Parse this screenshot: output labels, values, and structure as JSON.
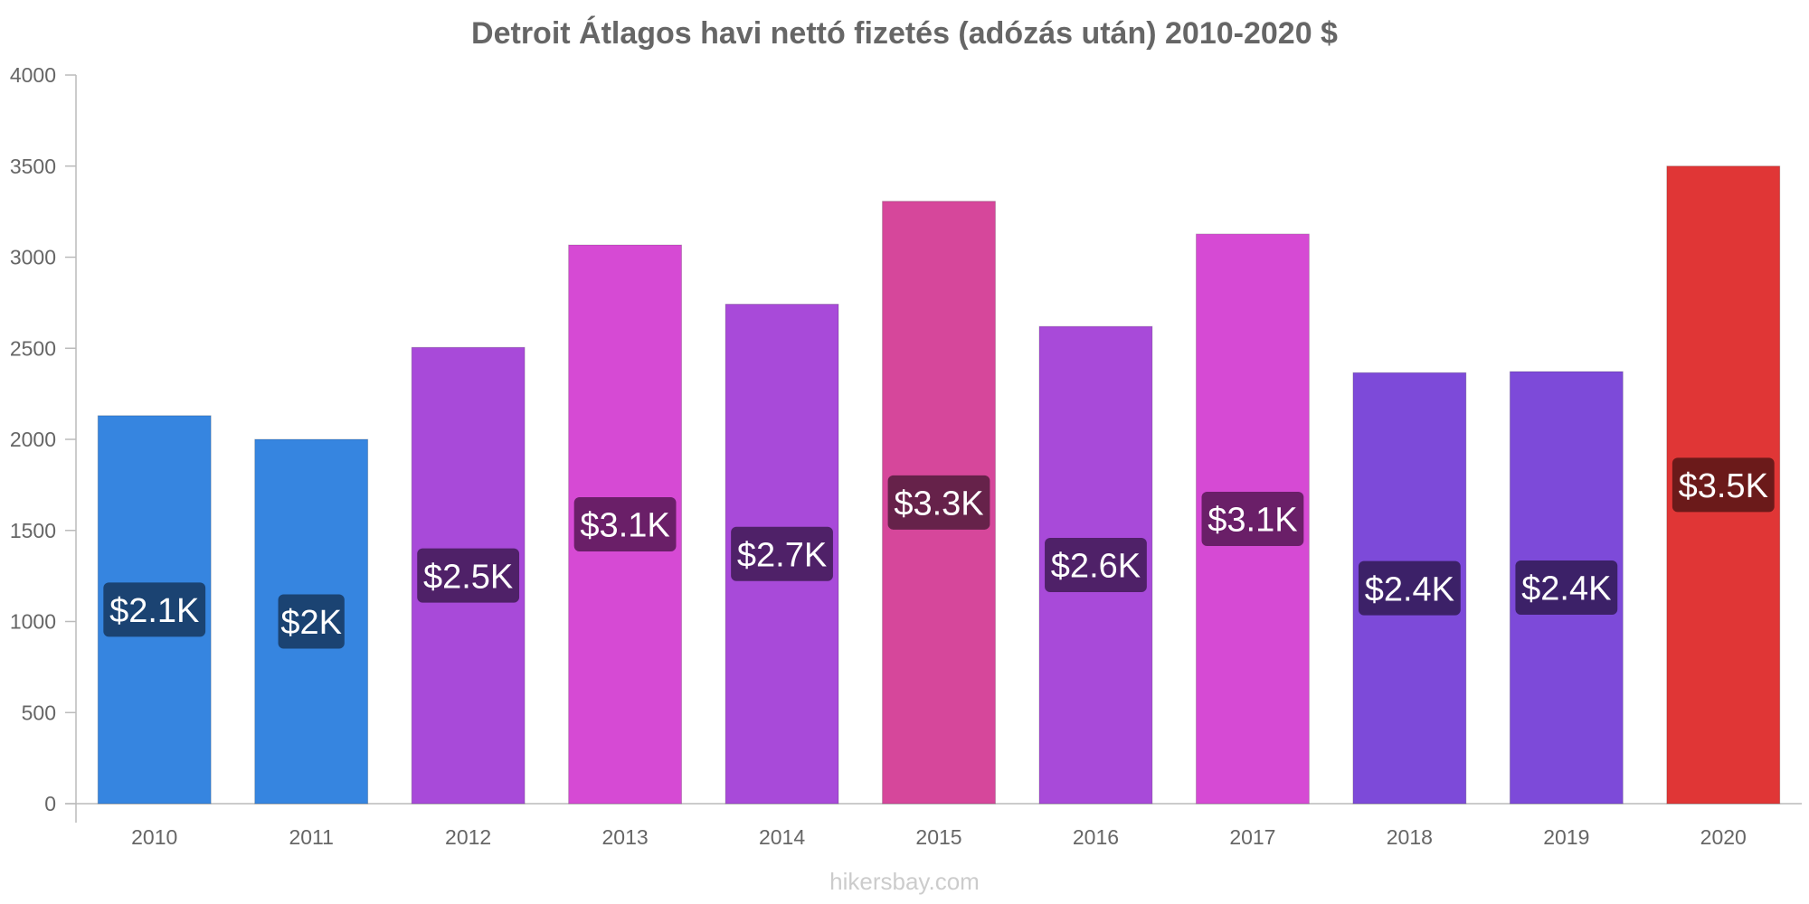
{
  "chart_data": {
    "type": "bar",
    "title": "Detroit Átlagos havi nettó fizetés (adózás után) 2010-2020 $",
    "categories": [
      "2010",
      "2011",
      "2012",
      "2013",
      "2014",
      "2015",
      "2016",
      "2017",
      "2018",
      "2019",
      "2020"
    ],
    "values": [
      2130,
      2000,
      2505,
      3067,
      2742,
      3307,
      2620,
      3127,
      2366,
      2372,
      3500
    ],
    "data_labels": [
      "$2.1K",
      "$2K",
      "$2.5K",
      "$3.1K",
      "$2.7K",
      "$3.3K",
      "$2.6K",
      "$3.1K",
      "$2.4K",
      "$2.4K",
      "$3.5K"
    ],
    "bar_colors": [
      "#3685e0",
      "#3685e0",
      "#a84ad9",
      "#d64ad4",
      "#a84ad9",
      "#d6479b",
      "#a84ad9",
      "#d64ad4",
      "#7d4ad9",
      "#7d4ad9",
      "#e03636"
    ],
    "label_colors": [
      "#1b4372",
      "#1b4372",
      "#4f2168",
      "#6a1f68",
      "#4f2168",
      "#66224a",
      "#4f2168",
      "#6a1f68",
      "#3c2168",
      "#3c2168",
      "#6b1a1a"
    ],
    "xlabel": "",
    "ylabel": "",
    "ylim": [
      0,
      4000
    ],
    "yticks": [
      0,
      500,
      1000,
      1500,
      2000,
      2500,
      3000,
      3500,
      4000
    ],
    "grid": false,
    "legend": "none"
  },
  "watermark": "hikersbay.com"
}
